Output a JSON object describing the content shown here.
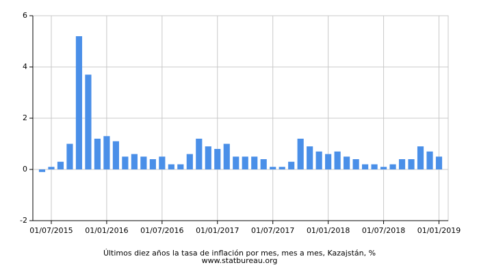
{
  "chart_data": {
    "type": "bar",
    "title": "Últimos diez años la tasa de inflación por mes, mes a mes, Kazajstán, %",
    "subtitle": "www.statbureau.org",
    "x": [
      "01/06/2015",
      "01/07/2015",
      "01/08/2015",
      "01/09/2015",
      "01/10/2015",
      "01/11/2015",
      "01/12/2015",
      "01/01/2016",
      "01/02/2016",
      "01/03/2016",
      "01/04/2016",
      "01/05/2016",
      "01/06/2016",
      "01/07/2016",
      "01/08/2016",
      "01/09/2016",
      "01/10/2016",
      "01/11/2016",
      "01/12/2016",
      "01/01/2017",
      "01/02/2017",
      "01/03/2017",
      "01/04/2017",
      "01/05/2017",
      "01/06/2017",
      "01/07/2017",
      "01/08/2017",
      "01/09/2017",
      "01/10/2017",
      "01/11/2017",
      "01/12/2017",
      "01/01/2018",
      "01/02/2018",
      "01/03/2018",
      "01/04/2018",
      "01/05/2018",
      "01/06/2018",
      "01/07/2018",
      "01/08/2018",
      "01/09/2018",
      "01/10/2018",
      "01/11/2018",
      "01/12/2018",
      "01/01/2019"
    ],
    "values": [
      -0.1,
      0.1,
      0.3,
      1.0,
      5.2,
      3.7,
      1.2,
      1.3,
      1.1,
      0.5,
      0.6,
      0.5,
      0.4,
      0.5,
      0.2,
      0.2,
      0.6,
      1.2,
      0.9,
      0.8,
      1.0,
      0.5,
      0.5,
      0.5,
      0.4,
      0.1,
      0.1,
      0.3,
      1.2,
      0.9,
      0.7,
      0.6,
      0.7,
      0.5,
      0.4,
      0.2,
      0.2,
      0.1,
      0.2,
      0.4,
      0.4,
      0.9,
      0.7,
      0.5
    ],
    "color": "#4a8fe8",
    "xlim": [
      "01/05/2015",
      "01/02/2019"
    ],
    "xticks": [
      "01/07/2015",
      "01/01/2016",
      "01/07/2016",
      "01/01/2017",
      "01/07/2017",
      "01/01/2018",
      "01/07/2018",
      "01/01/2019"
    ],
    "ylim": [
      -2,
      6
    ],
    "yticks": [
      -2,
      0,
      2,
      4,
      6
    ],
    "grid": true
  }
}
